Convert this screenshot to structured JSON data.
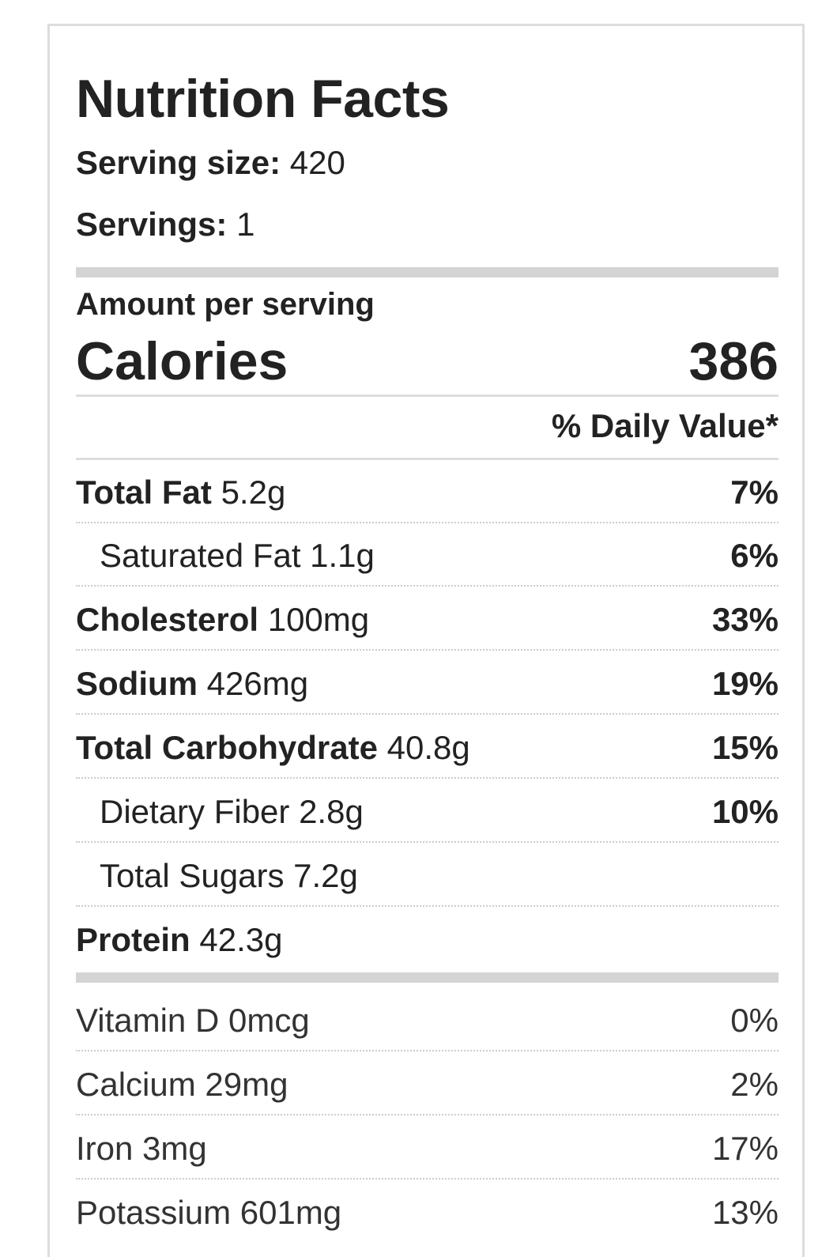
{
  "label": {
    "title": "Nutrition Facts",
    "serving_size_label": "Serving size:",
    "serving_size_value": "420",
    "servings_label": "Servings:",
    "servings_value": "1",
    "amount_per_serving": "Amount per serving",
    "calories_label": "Calories",
    "calories_value": "386",
    "daily_value_header": "% Daily Value*"
  },
  "nutrients": [
    {
      "name": "Total Fat",
      "amount": "5.2g",
      "pct": "7%"
    },
    {
      "name": "Saturated Fat",
      "amount": "1.1g",
      "pct": "6%"
    },
    {
      "name": "Cholesterol",
      "amount": "100mg",
      "pct": "33%"
    },
    {
      "name": "Sodium",
      "amount": "426mg",
      "pct": "19%"
    },
    {
      "name": "Total Carbohydrate",
      "amount": "40.8g",
      "pct": "15%"
    },
    {
      "name": "Dietary Fiber",
      "amount": "2.8g",
      "pct": "10%"
    },
    {
      "name": "Total Sugars",
      "amount": "7.2g",
      "pct": ""
    },
    {
      "name": "Protein",
      "amount": "42.3g",
      "pct": ""
    }
  ],
  "vitamins": [
    {
      "name": "Vitamin D",
      "amount": "0mcg",
      "pct": "0%"
    },
    {
      "name": "Calcium",
      "amount": "29mg",
      "pct": "2%"
    },
    {
      "name": "Iron",
      "amount": "3mg",
      "pct": "17%"
    },
    {
      "name": "Potassium",
      "amount": "601mg",
      "pct": "13%"
    }
  ]
}
